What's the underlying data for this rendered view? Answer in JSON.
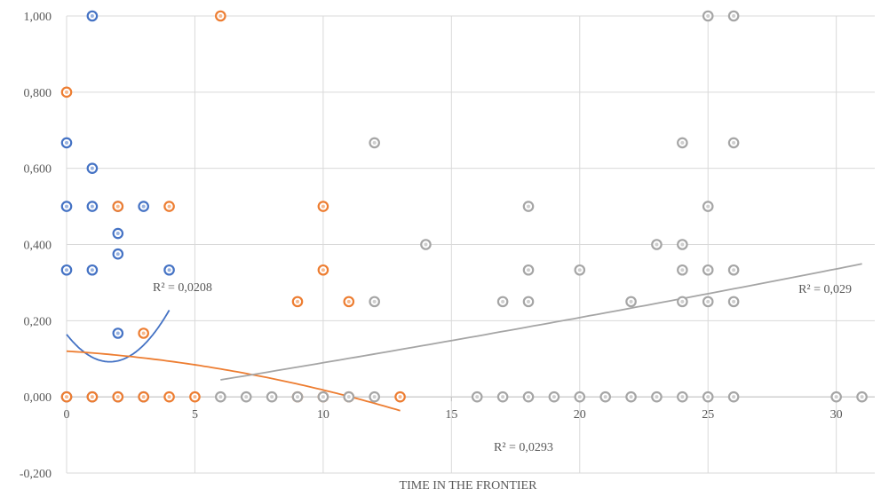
{
  "chart_data": {
    "type": "scatter",
    "title": "",
    "xlabel": "TIME IN THE FRONTIER",
    "ylabel": "",
    "xlim": [
      0,
      31.5
    ],
    "ylim": [
      -0.2,
      1.0
    ],
    "x_ticks": [
      "0",
      "5",
      "10",
      "15",
      "20",
      "25",
      "30"
    ],
    "y_ticks": [
      "-0,200",
      "0,000",
      "0,200",
      "0,400",
      "0,600",
      "0,800",
      "1,000"
    ],
    "grid": true,
    "legend": "none",
    "series": [
      {
        "color": "#4472c4",
        "points": [
          [
            0,
            0
          ],
          [
            0,
            0.333
          ],
          [
            0,
            0.5
          ],
          [
            0,
            0.667
          ],
          [
            1,
            1.0
          ],
          [
            1,
            0.6
          ],
          [
            1,
            0.5
          ],
          [
            1,
            0.333
          ],
          [
            1,
            0
          ],
          [
            2,
            0.5
          ],
          [
            2,
            0.429
          ],
          [
            2,
            0.375
          ],
          [
            2,
            0.167
          ],
          [
            2,
            0
          ],
          [
            3,
            0.5
          ],
          [
            3,
            0
          ],
          [
            4,
            0.333
          ]
        ],
        "trendline": {
          "kind": "poly2",
          "coef": [
            0.164,
            -0.0853,
            0.0253
          ],
          "x_range": [
            0,
            4
          ],
          "r2_label": "R² = 0,0208"
        }
      },
      {
        "color": "#ed7d31",
        "points": [
          [
            0,
            0.8
          ],
          [
            0,
            0
          ],
          [
            1,
            0
          ],
          [
            2,
            0.5
          ],
          [
            2,
            0
          ],
          [
            3,
            0.167
          ],
          [
            3,
            0
          ],
          [
            4,
            0.5
          ],
          [
            4,
            0
          ],
          [
            5,
            0
          ],
          [
            6,
            1.0
          ],
          [
            9,
            0.25
          ],
          [
            9,
            0
          ],
          [
            10,
            0.5
          ],
          [
            10,
            0.333
          ],
          [
            10,
            0
          ],
          [
            11,
            0.25
          ],
          [
            11,
            0
          ],
          [
            13,
            0
          ]
        ],
        "trendline": {
          "kind": "poly2",
          "coef": [
            0.12,
            -0.00414,
            -0.000606
          ],
          "x_range": [
            0,
            13
          ],
          "r2_label": "R² = 0,0293"
        }
      },
      {
        "color": "#a5a5a5",
        "points": [
          [
            6,
            0
          ],
          [
            7,
            0
          ],
          [
            8,
            0
          ],
          [
            9,
            0
          ],
          [
            10,
            0
          ],
          [
            11,
            0
          ],
          [
            12,
            0
          ],
          [
            12,
            0.667
          ],
          [
            12,
            0.25
          ],
          [
            14,
            0.4
          ],
          [
            16,
            0
          ],
          [
            17,
            0
          ],
          [
            17,
            0.25
          ],
          [
            18,
            0.5
          ],
          [
            18,
            0.333
          ],
          [
            18,
            0.25
          ],
          [
            18,
            0
          ],
          [
            19,
            0
          ],
          [
            20,
            0.333
          ],
          [
            20,
            0
          ],
          [
            21,
            0
          ],
          [
            22,
            0.25
          ],
          [
            22,
            0
          ],
          [
            23,
            0.4
          ],
          [
            23,
            0
          ],
          [
            24,
            0.667
          ],
          [
            24,
            0.4
          ],
          [
            24,
            0.333
          ],
          [
            24,
            0.25
          ],
          [
            24,
            0
          ],
          [
            25,
            1.0
          ],
          [
            25,
            0.5
          ],
          [
            25,
            0.333
          ],
          [
            25,
            0.25
          ],
          [
            25,
            0
          ],
          [
            26,
            1.0
          ],
          [
            26,
            0.667
          ],
          [
            26,
            0.333
          ],
          [
            26,
            0.25
          ],
          [
            26,
            0
          ],
          [
            30,
            0
          ],
          [
            31,
            0
          ]
        ],
        "trendline": {
          "kind": "poly2",
          "coef": [
            -0.02,
            0.0105,
            4.54e-05
          ],
          "x_range": [
            6,
            31
          ],
          "r2_label": "R² = 0,029"
        }
      }
    ]
  }
}
